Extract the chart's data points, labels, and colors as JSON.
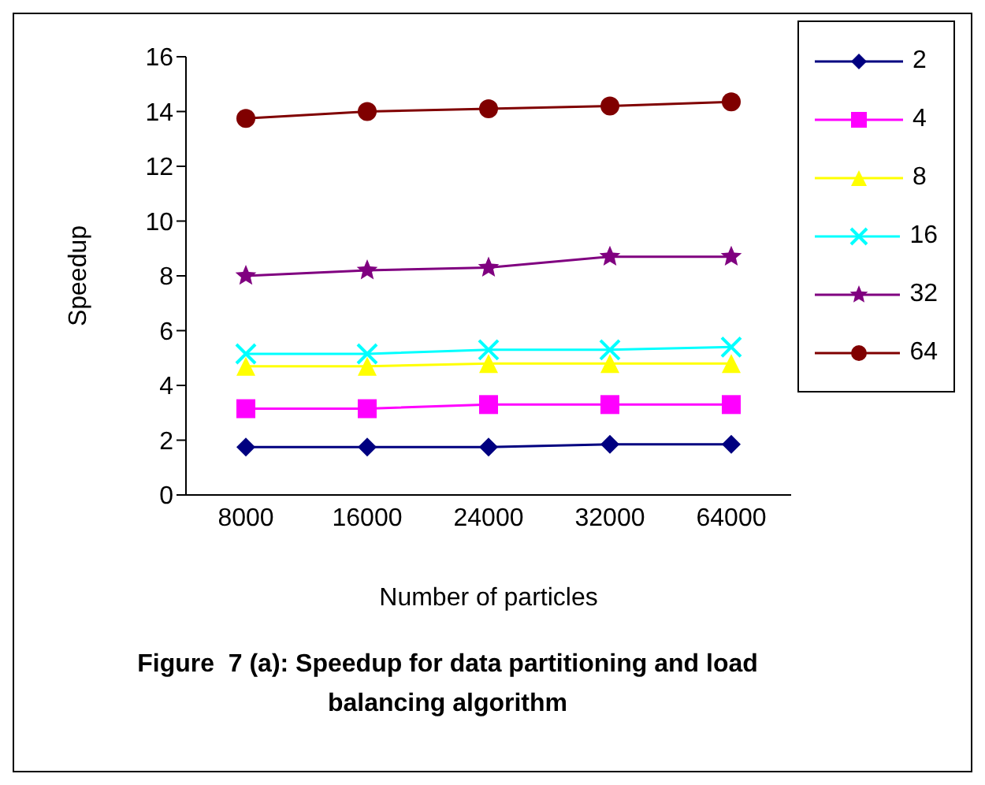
{
  "chart_data": {
    "type": "line",
    "title": "Figure  7 (a): Speedup for data partitioning and load balancing algorithm",
    "xlabel": "Number of particles",
    "ylabel": "Speedup",
    "categories": [
      "8000",
      "16000",
      "24000",
      "32000",
      "64000"
    ],
    "series": [
      {
        "name": "2",
        "color": "#000080",
        "marker": "diamond",
        "values": [
          1.75,
          1.75,
          1.75,
          1.85,
          1.85
        ]
      },
      {
        "name": "4",
        "color": "#ff00ff",
        "marker": "square",
        "values": [
          3.15,
          3.15,
          3.3,
          3.3,
          3.3
        ]
      },
      {
        "name": "8",
        "color": "#ffff00",
        "marker": "triangle",
        "values": [
          4.7,
          4.7,
          4.8,
          4.8,
          4.8
        ]
      },
      {
        "name": "16",
        "color": "#00ffff",
        "marker": "cross",
        "values": [
          5.15,
          5.15,
          5.3,
          5.3,
          5.4
        ]
      },
      {
        "name": "32",
        "color": "#800080",
        "marker": "star",
        "values": [
          8.0,
          8.2,
          8.3,
          8.7,
          8.7
        ]
      },
      {
        "name": "64",
        "color": "#800000",
        "marker": "circle",
        "values": [
          13.75,
          14.0,
          14.1,
          14.2,
          14.35
        ]
      }
    ],
    "ylim": [
      0,
      16
    ],
    "yticks": [
      0,
      2,
      4,
      6,
      8,
      10,
      12,
      14,
      16
    ],
    "grid": false,
    "legend": "right",
    "line_style": "solid"
  }
}
